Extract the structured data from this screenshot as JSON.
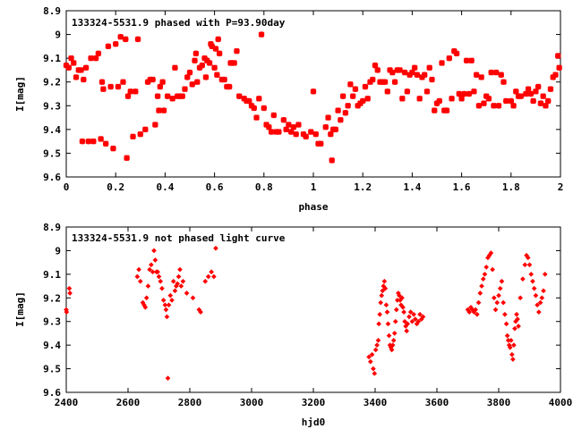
{
  "chart_data": [
    {
      "type": "scatter",
      "title": "133324-5531.9 phased with P=93.90day",
      "xlabel": "phase",
      "ylabel": "I[mag]",
      "xlim": [
        0,
        2
      ],
      "ylim": [
        9.6,
        8.9
      ],
      "y_inverted": true,
      "grid": false,
      "marker_color": "#ff0000",
      "xticks": [
        "0",
        "0.2",
        "0.4",
        "0.6",
        "0.8",
        "1",
        "1.2",
        "1.4",
        "1.6",
        "1.8",
        "2"
      ],
      "yticks": [
        "8.9",
        "9",
        "9.1",
        "9.2",
        "9.3",
        "9.4",
        "9.5",
        "9.6"
      ],
      "points": [
        [
          0.0,
          9.13
        ],
        [
          0.01,
          9.14
        ],
        [
          0.02,
          9.1
        ],
        [
          0.03,
          9.12
        ],
        [
          0.04,
          9.18
        ],
        [
          0.05,
          9.15
        ],
        [
          0.06,
          9.15
        ],
        [
          0.065,
          9.45
        ],
        [
          0.07,
          9.19
        ],
        [
          0.08,
          9.14
        ],
        [
          0.09,
          9.45
        ],
        [
          0.1,
          9.1
        ],
        [
          0.11,
          9.45
        ],
        [
          0.12,
          9.1
        ],
        [
          0.13,
          9.08
        ],
        [
          0.14,
          9.44
        ],
        [
          0.145,
          9.2
        ],
        [
          0.15,
          9.23
        ],
        [
          0.16,
          9.46
        ],
        [
          0.17,
          9.05
        ],
        [
          0.18,
          9.22
        ],
        [
          0.19,
          9.48
        ],
        [
          0.2,
          9.04
        ],
        [
          0.21,
          9.22
        ],
        [
          0.22,
          9.01
        ],
        [
          0.23,
          9.2
        ],
        [
          0.24,
          9.02
        ],
        [
          0.245,
          9.52
        ],
        [
          0.25,
          9.26
        ],
        [
          0.26,
          9.24
        ],
        [
          0.27,
          9.43
        ],
        [
          0.28,
          9.24
        ],
        [
          0.29,
          9.02
        ],
        [
          0.3,
          9.42
        ],
        [
          0.32,
          9.4
        ],
        [
          0.33,
          9.2
        ],
        [
          0.34,
          9.19
        ],
        [
          0.35,
          9.19
        ],
        [
          0.36,
          9.38
        ],
        [
          0.37,
          9.26
        ],
        [
          0.375,
          9.32
        ],
        [
          0.38,
          9.22
        ],
        [
          0.39,
          9.2
        ],
        [
          0.395,
          9.32
        ],
        [
          0.41,
          9.26
        ],
        [
          0.43,
          9.27
        ],
        [
          0.44,
          9.14
        ],
        [
          0.45,
          9.26
        ],
        [
          0.46,
          9.26
        ],
        [
          0.47,
          9.26
        ],
        [
          0.48,
          9.23
        ],
        [
          0.49,
          9.18
        ],
        [
          0.5,
          9.16
        ],
        [
          0.51,
          9.21
        ],
        [
          0.52,
          9.11
        ],
        [
          0.525,
          9.08
        ],
        [
          0.53,
          9.2
        ],
        [
          0.54,
          9.14
        ],
        [
          0.55,
          9.13
        ],
        [
          0.56,
          9.1
        ],
        [
          0.565,
          9.18
        ],
        [
          0.57,
          9.11
        ],
        [
          0.58,
          9.12
        ],
        [
          0.585,
          9.04
        ],
        [
          0.59,
          9.05
        ],
        [
          0.6,
          9.14
        ],
        [
          0.605,
          9.06
        ],
        [
          0.61,
          9.17
        ],
        [
          0.615,
          9.02
        ],
        [
          0.62,
          9.08
        ],
        [
          0.63,
          9.19
        ],
        [
          0.64,
          9.19
        ],
        [
          0.65,
          9.22
        ],
        [
          0.66,
          9.22
        ],
        [
          0.665,
          9.12
        ],
        [
          0.67,
          9.12
        ],
        [
          0.68,
          9.12
        ],
        [
          0.69,
          9.07
        ],
        [
          0.7,
          9.26
        ],
        [
          0.72,
          9.27
        ],
        [
          0.73,
          9.28
        ],
        [
          0.74,
          9.28
        ],
        [
          0.75,
          9.3
        ],
        [
          0.76,
          9.31
        ],
        [
          0.77,
          9.35
        ],
        [
          0.78,
          9.27
        ],
        [
          0.79,
          9.0
        ],
        [
          0.8,
          9.31
        ],
        [
          0.81,
          9.38
        ],
        [
          0.82,
          9.39
        ],
        [
          0.83,
          9.41
        ],
        [
          0.84,
          9.34
        ],
        [
          0.85,
          9.41
        ],
        [
          0.86,
          9.41
        ],
        [
          0.88,
          9.36
        ],
        [
          0.89,
          9.4
        ],
        [
          0.9,
          9.38
        ],
        [
          0.91,
          9.41
        ],
        [
          0.92,
          9.39
        ],
        [
          0.93,
          9.42
        ],
        [
          0.94,
          9.38
        ],
        [
          0.96,
          9.42
        ],
        [
          0.97,
          9.43
        ],
        [
          0.99,
          9.41
        ],
        [
          1.0,
          9.24
        ],
        [
          1.01,
          9.42
        ],
        [
          1.02,
          9.46
        ],
        [
          1.03,
          9.46
        ],
        [
          1.05,
          9.39
        ],
        [
          1.06,
          9.35
        ],
        [
          1.07,
          9.42
        ],
        [
          1.075,
          9.53
        ],
        [
          1.08,
          9.4
        ],
        [
          1.09,
          9.4
        ],
        [
          1.1,
          9.32
        ],
        [
          1.11,
          9.36
        ],
        [
          1.12,
          9.26
        ],
        [
          1.13,
          9.33
        ],
        [
          1.14,
          9.3
        ],
        [
          1.15,
          9.21
        ],
        [
          1.16,
          9.26
        ],
        [
          1.17,
          9.23
        ],
        [
          1.18,
          9.3
        ],
        [
          1.19,
          9.29
        ],
        [
          1.2,
          9.28
        ],
        [
          1.21,
          9.22
        ],
        [
          1.22,
          9.27
        ],
        [
          1.23,
          9.2
        ],
        [
          1.24,
          9.19
        ],
        [
          1.25,
          9.13
        ],
        [
          1.26,
          9.15
        ],
        [
          1.27,
          9.2
        ],
        [
          1.28,
          9.2
        ],
        [
          1.29,
          9.2
        ],
        [
          1.3,
          9.24
        ],
        [
          1.31,
          9.15
        ],
        [
          1.32,
          9.16
        ],
        [
          1.33,
          9.2
        ],
        [
          1.34,
          9.15
        ],
        [
          1.35,
          9.15
        ],
        [
          1.36,
          9.27
        ],
        [
          1.37,
          9.16
        ],
        [
          1.38,
          9.24
        ],
        [
          1.39,
          9.17
        ],
        [
          1.4,
          9.16
        ],
        [
          1.41,
          9.14
        ],
        [
          1.42,
          9.17
        ],
        [
          1.43,
          9.27
        ],
        [
          1.44,
          9.18
        ],
        [
          1.45,
          9.17
        ],
        [
          1.46,
          9.24
        ],
        [
          1.47,
          9.14
        ],
        [
          1.48,
          9.19
        ],
        [
          1.49,
          9.32
        ],
        [
          1.5,
          9.29
        ],
        [
          1.51,
          9.28
        ],
        [
          1.52,
          9.12
        ],
        [
          1.53,
          9.32
        ],
        [
          1.54,
          9.32
        ],
        [
          1.55,
          9.1
        ],
        [
          1.56,
          9.27
        ],
        [
          1.57,
          9.07
        ],
        [
          1.58,
          9.08
        ],
        [
          1.59,
          9.25
        ],
        [
          1.6,
          9.27
        ],
        [
          1.61,
          9.25
        ],
        [
          1.62,
          9.11
        ],
        [
          1.63,
          9.25
        ],
        [
          1.64,
          9.11
        ],
        [
          1.65,
          9.24
        ],
        [
          1.66,
          9.17
        ],
        [
          1.67,
          9.3
        ],
        [
          1.68,
          9.18
        ],
        [
          1.69,
          9.29
        ],
        [
          1.7,
          9.26
        ],
        [
          1.71,
          9.27
        ],
        [
          1.72,
          9.16
        ],
        [
          1.73,
          9.3
        ],
        [
          1.74,
          9.16
        ],
        [
          1.75,
          9.3
        ],
        [
          1.76,
          9.17
        ],
        [
          1.77,
          9.2
        ],
        [
          1.78,
          9.28
        ],
        [
          1.8,
          9.28
        ],
        [
          1.81,
          9.3
        ],
        [
          1.82,
          9.24
        ],
        [
          1.83,
          9.26
        ],
        [
          1.84,
          9.26
        ],
        [
          1.86,
          9.25
        ],
        [
          1.87,
          9.23
        ],
        [
          1.88,
          9.25
        ],
        [
          1.89,
          9.28
        ],
        [
          1.9,
          9.24
        ],
        [
          1.91,
          9.22
        ],
        [
          1.92,
          9.29
        ],
        [
          1.93,
          9.26
        ],
        [
          1.94,
          9.3
        ],
        [
          1.95,
          9.28
        ],
        [
          1.96,
          9.23
        ],
        [
          1.97,
          9.18
        ],
        [
          1.98,
          9.17
        ],
        [
          1.99,
          9.09
        ],
        [
          1.995,
          9.14
        ]
      ]
    },
    {
      "type": "scatter",
      "title": "133324-5531.9 not phased light curve",
      "xlabel": "hjd0",
      "ylabel": "I[mag]",
      "xlim": [
        2400,
        4000
      ],
      "ylim": [
        9.6,
        8.9
      ],
      "y_inverted": true,
      "grid": false,
      "marker_color": "#ff0000",
      "xticks": [
        "2400",
        "2600",
        "2800",
        "3000",
        "3200",
        "3400",
        "3600",
        "3800",
        "4000"
      ],
      "yticks": [
        "8.9",
        "9",
        "9.1",
        "9.2",
        "9.3",
        "9.4",
        "9.5",
        "9.6"
      ],
      "points": [
        [
          2400,
          9.25
        ],
        [
          2401,
          9.26
        ],
        [
          2410,
          9.16
        ],
        [
          2412,
          9.18
        ],
        [
          2630,
          9.11
        ],
        [
          2635,
          9.08
        ],
        [
          2640,
          9.13
        ],
        [
          2648,
          9.22
        ],
        [
          2652,
          9.23
        ],
        [
          2656,
          9.24
        ],
        [
          2660,
          9.2
        ],
        [
          2665,
          9.15
        ],
        [
          2670,
          9.08
        ],
        [
          2675,
          9.06
        ],
        [
          2680,
          9.09
        ],
        [
          2684,
          9.0
        ],
        [
          2688,
          9.04
        ],
        [
          2692,
          9.09
        ],
        [
          2696,
          9.09
        ],
        [
          2700,
          9.11
        ],
        [
          2705,
          9.13
        ],
        [
          2710,
          9.16
        ],
        [
          2715,
          9.21
        ],
        [
          2720,
          9.23
        ],
        [
          2723,
          9.25
        ],
        [
          2726,
          9.28
        ],
        [
          2729,
          9.54
        ],
        [
          2732,
          9.23
        ],
        [
          2737,
          9.19
        ],
        [
          2742,
          9.21
        ],
        [
          2747,
          9.13
        ],
        [
          2752,
          9.17
        ],
        [
          2756,
          9.15
        ],
        [
          2760,
          9.14
        ],
        [
          2764,
          9.11
        ],
        [
          2768,
          9.08
        ],
        [
          2772,
          9.15
        ],
        [
          2778,
          9.13
        ],
        [
          2790,
          9.18
        ],
        [
          2810,
          9.2
        ],
        [
          2830,
          9.25
        ],
        [
          2835,
          9.26
        ],
        [
          2850,
          9.13
        ],
        [
          2860,
          9.11
        ],
        [
          2870,
          9.09
        ],
        [
          2878,
          9.11
        ],
        [
          2884,
          8.99
        ],
        [
          3380,
          9.45
        ],
        [
          3385,
          9.47
        ],
        [
          3390,
          9.44
        ],
        [
          3394,
          9.5
        ],
        [
          3398,
          9.52
        ],
        [
          3402,
          9.42
        ],
        [
          3406,
          9.4
        ],
        [
          3410,
          9.38
        ],
        [
          3412,
          9.31
        ],
        [
          3415,
          9.27
        ],
        [
          3418,
          9.22
        ],
        [
          3421,
          9.19
        ],
        [
          3424,
          9.17
        ],
        [
          3427,
          9.15
        ],
        [
          3430,
          9.13
        ],
        [
          3433,
          9.16
        ],
        [
          3436,
          9.23
        ],
        [
          3439,
          9.26
        ],
        [
          3442,
          9.31
        ],
        [
          3445,
          9.36
        ],
        [
          3448,
          9.4
        ],
        [
          3451,
          9.41
        ],
        [
          3454,
          9.42
        ],
        [
          3457,
          9.4
        ],
        [
          3460,
          9.38
        ],
        [
          3463,
          9.35
        ],
        [
          3466,
          9.3
        ],
        [
          3469,
          9.25
        ],
        [
          3472,
          9.21
        ],
        [
          3475,
          9.18
        ],
        [
          3478,
          9.19
        ],
        [
          3481,
          9.21
        ],
        [
          3484,
          9.23
        ],
        [
          3487,
          9.2
        ],
        [
          3490,
          9.24
        ],
        [
          3493,
          9.26
        ],
        [
          3496,
          9.3
        ],
        [
          3499,
          9.32
        ],
        [
          3502,
          9.34
        ],
        [
          3505,
          9.31
        ],
        [
          3510,
          9.28
        ],
        [
          3515,
          9.26
        ],
        [
          3520,
          9.3
        ],
        [
          3525,
          9.27
        ],
        [
          3530,
          9.29
        ],
        [
          3535,
          9.31
        ],
        [
          3540,
          9.3
        ],
        [
          3545,
          9.27
        ],
        [
          3550,
          9.29
        ],
        [
          3555,
          9.28
        ],
        [
          3700,
          9.25
        ],
        [
          3705,
          9.26
        ],
        [
          3710,
          9.24
        ],
        [
          3715,
          9.25
        ],
        [
          3720,
          9.26
        ],
        [
          3725,
          9.25
        ],
        [
          3730,
          9.27
        ],
        [
          3735,
          9.22
        ],
        [
          3740,
          9.18
        ],
        [
          3745,
          9.15
        ],
        [
          3750,
          9.12
        ],
        [
          3755,
          9.1
        ],
        [
          3760,
          9.07
        ],
        [
          3765,
          9.03
        ],
        [
          3770,
          9.02
        ],
        [
          3775,
          9.01
        ],
        [
          3780,
          9.08
        ],
        [
          3785,
          9.2
        ],
        [
          3790,
          9.25
        ],
        [
          3795,
          9.22
        ],
        [
          3800,
          9.19
        ],
        [
          3805,
          9.16
        ],
        [
          3810,
          9.13
        ],
        [
          3815,
          9.22
        ],
        [
          3820,
          9.27
        ],
        [
          3825,
          9.31
        ],
        [
          3828,
          9.36
        ],
        [
          3831,
          9.38
        ],
        [
          3834,
          9.4
        ],
        [
          3837,
          9.41
        ],
        [
          3840,
          9.38
        ],
        [
          3843,
          9.44
        ],
        [
          3846,
          9.46
        ],
        [
          3849,
          9.4
        ],
        [
          3852,
          9.33
        ],
        [
          3855,
          9.3
        ],
        [
          3858,
          9.27
        ],
        [
          3861,
          9.29
        ],
        [
          3864,
          9.32
        ],
        [
          3870,
          9.2
        ],
        [
          3878,
          9.12
        ],
        [
          3885,
          9.06
        ],
        [
          3890,
          9.02
        ],
        [
          3895,
          9.03
        ],
        [
          3900,
          9.06
        ],
        [
          3905,
          9.1
        ],
        [
          3910,
          9.13
        ],
        [
          3915,
          9.16
        ],
        [
          3920,
          9.19
        ],
        [
          3925,
          9.23
        ],
        [
          3930,
          9.26
        ],
        [
          3935,
          9.22
        ],
        [
          3940,
          9.2
        ],
        [
          3945,
          9.17
        ],
        [
          3950,
          9.1
        ]
      ]
    }
  ]
}
